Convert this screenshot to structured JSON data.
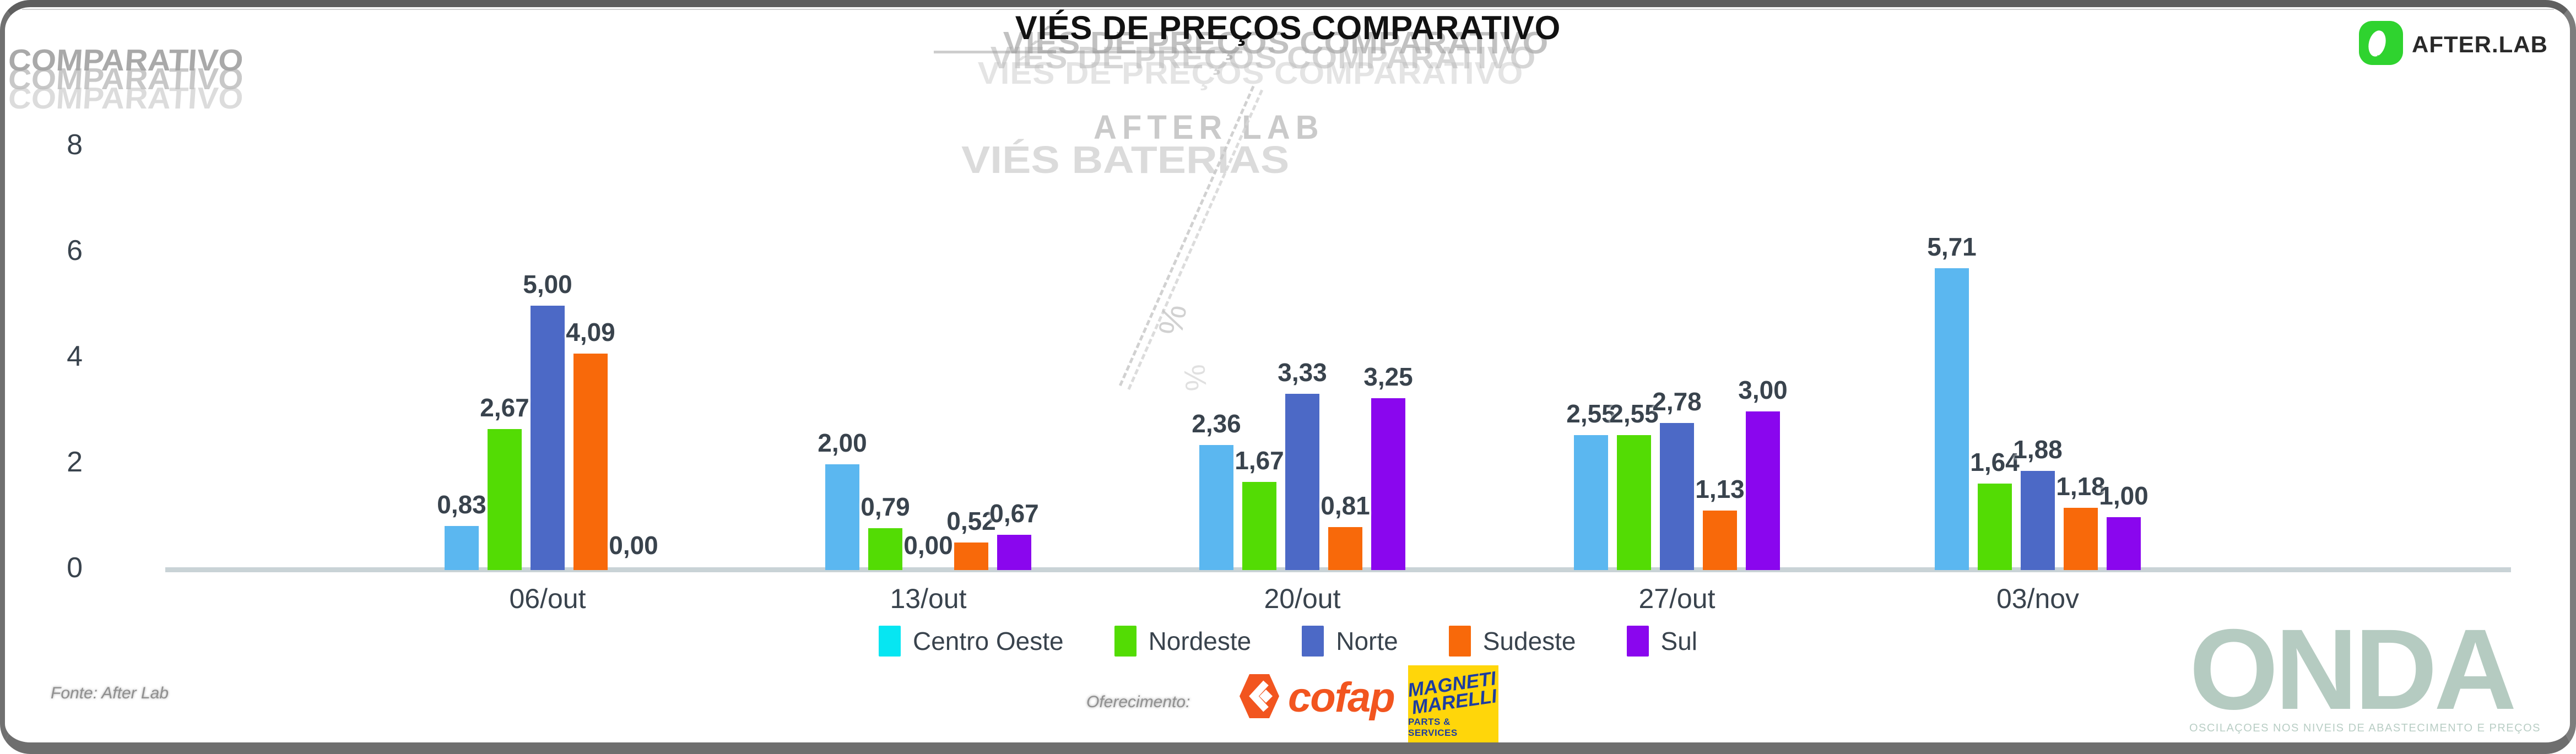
{
  "header": {
    "title": "VIÉS DE PREÇOS COMPARATIVO",
    "logo": {
      "name": "AFTER.LAB"
    }
  },
  "watermarks": {
    "corner": "COMPARATIVO",
    "title_echo": "VIÉS DE PREÇOS COMPARATIVO",
    "ghost_afterlab": "AFTER LAB",
    "ghost_baterias": "VIÉS BATERIAS",
    "ghost_percent": "%"
  },
  "chart_data": {
    "type": "bar",
    "title": "VIÉS DE PREÇOS COMPARATIVO",
    "categories": [
      "06/out",
      "13/out",
      "20/out",
      "27/out",
      "03/nov"
    ],
    "series": [
      {
        "name": "Centro Oeste",
        "color": "#06e6f2",
        "bar_color": "#5bb7f0",
        "values": [
          0.83,
          2.0,
          2.36,
          2.55,
          5.71
        ]
      },
      {
        "name": "Nordeste",
        "color": "#53dc04",
        "values": [
          2.67,
          0.79,
          1.67,
          2.55,
          1.64
        ]
      },
      {
        "name": "Norte",
        "color": "#4c69c6",
        "values": [
          5.0,
          0.0,
          3.33,
          2.78,
          1.88
        ]
      },
      {
        "name": "Sudeste",
        "color": "#f8690a",
        "values": [
          4.09,
          0.52,
          0.81,
          1.13,
          1.18
        ]
      },
      {
        "name": "Sul",
        "color": "#8a06ee",
        "values": [
          0.0,
          0.67,
          3.25,
          3.0,
          1.0
        ]
      }
    ],
    "value_labels": [
      [
        "0,83",
        "2,67",
        "5,00",
        "4,09",
        "0,00"
      ],
      [
        "2,00",
        "0,79",
        "0,00",
        "0,52",
        "0,67"
      ],
      [
        "2,36",
        "1,67",
        "3,33",
        "0,81",
        "3,25"
      ],
      [
        "2,55",
        "2,55",
        "2,78",
        "1,13",
        "3,00"
      ],
      [
        "5,71",
        "1,64",
        "1,88",
        "1,18",
        "1,00"
      ]
    ],
    "ylim": [
      0,
      8
    ],
    "yticks": [
      0,
      2,
      4,
      6,
      8
    ],
    "grid": false,
    "legend_position": "bottom"
  },
  "footer": {
    "source": "Fonte: After Lab",
    "sponsor_label": "Oferecimento:",
    "cofap": "cofap",
    "magneti_line1": "MAGNETI",
    "magneti_line2": "MARELLI",
    "magneti_sub": "PARTS & SERVICES",
    "brand": {
      "name": "ONDA",
      "tagline": "OSCILAÇOES NOS NIVEIS DE ABASTECIMENTO E PREÇOS"
    }
  }
}
